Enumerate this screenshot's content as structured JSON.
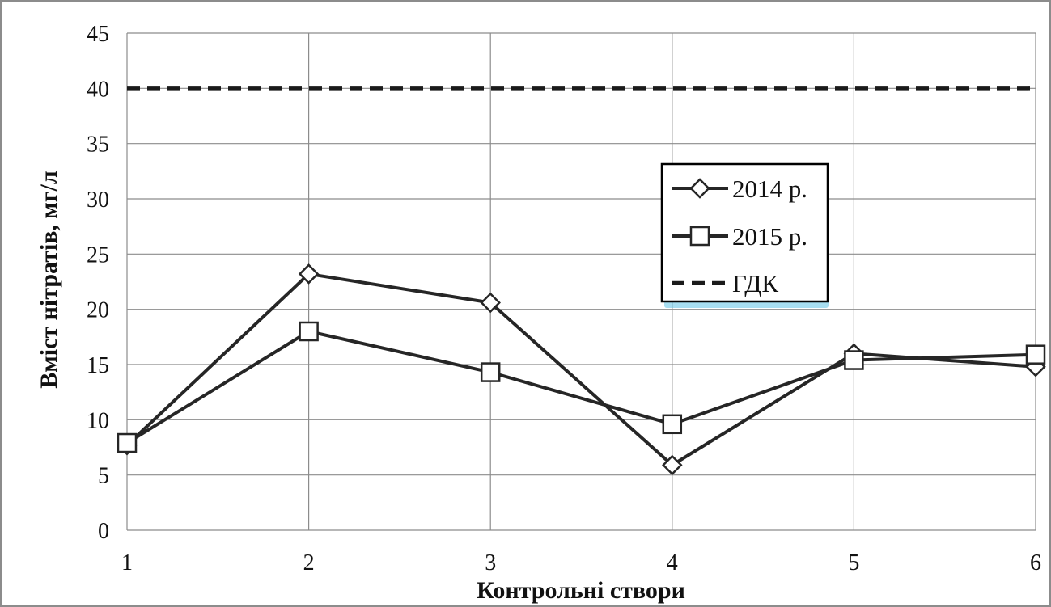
{
  "chart_data": {
    "type": "line",
    "title": "",
    "xlabel": "Контрольні створи",
    "ylabel": "Вміст нітратів, мг/л",
    "categories": [
      "1",
      "2",
      "3",
      "4",
      "5",
      "6"
    ],
    "ylim": [
      0,
      45
    ],
    "yticks": [
      0,
      5,
      10,
      15,
      20,
      25,
      30,
      35,
      40,
      45
    ],
    "grid": true,
    "legend_position": "center-right",
    "series": [
      {
        "name": "2014 р.",
        "marker": "diamond",
        "style": "solid",
        "color": "#262626",
        "values": [
          7.7,
          23.2,
          20.6,
          5.9,
          16.0,
          14.8
        ]
      },
      {
        "name": "2015 р.",
        "marker": "square",
        "style": "solid",
        "color": "#262626",
        "values": [
          7.9,
          18.0,
          14.3,
          9.6,
          15.4,
          15.9
        ]
      },
      {
        "name": "ГДК",
        "marker": "none",
        "style": "dashed",
        "color": "#1a1a1a",
        "values": [
          40,
          40,
          40,
          40,
          40,
          40
        ]
      }
    ]
  }
}
